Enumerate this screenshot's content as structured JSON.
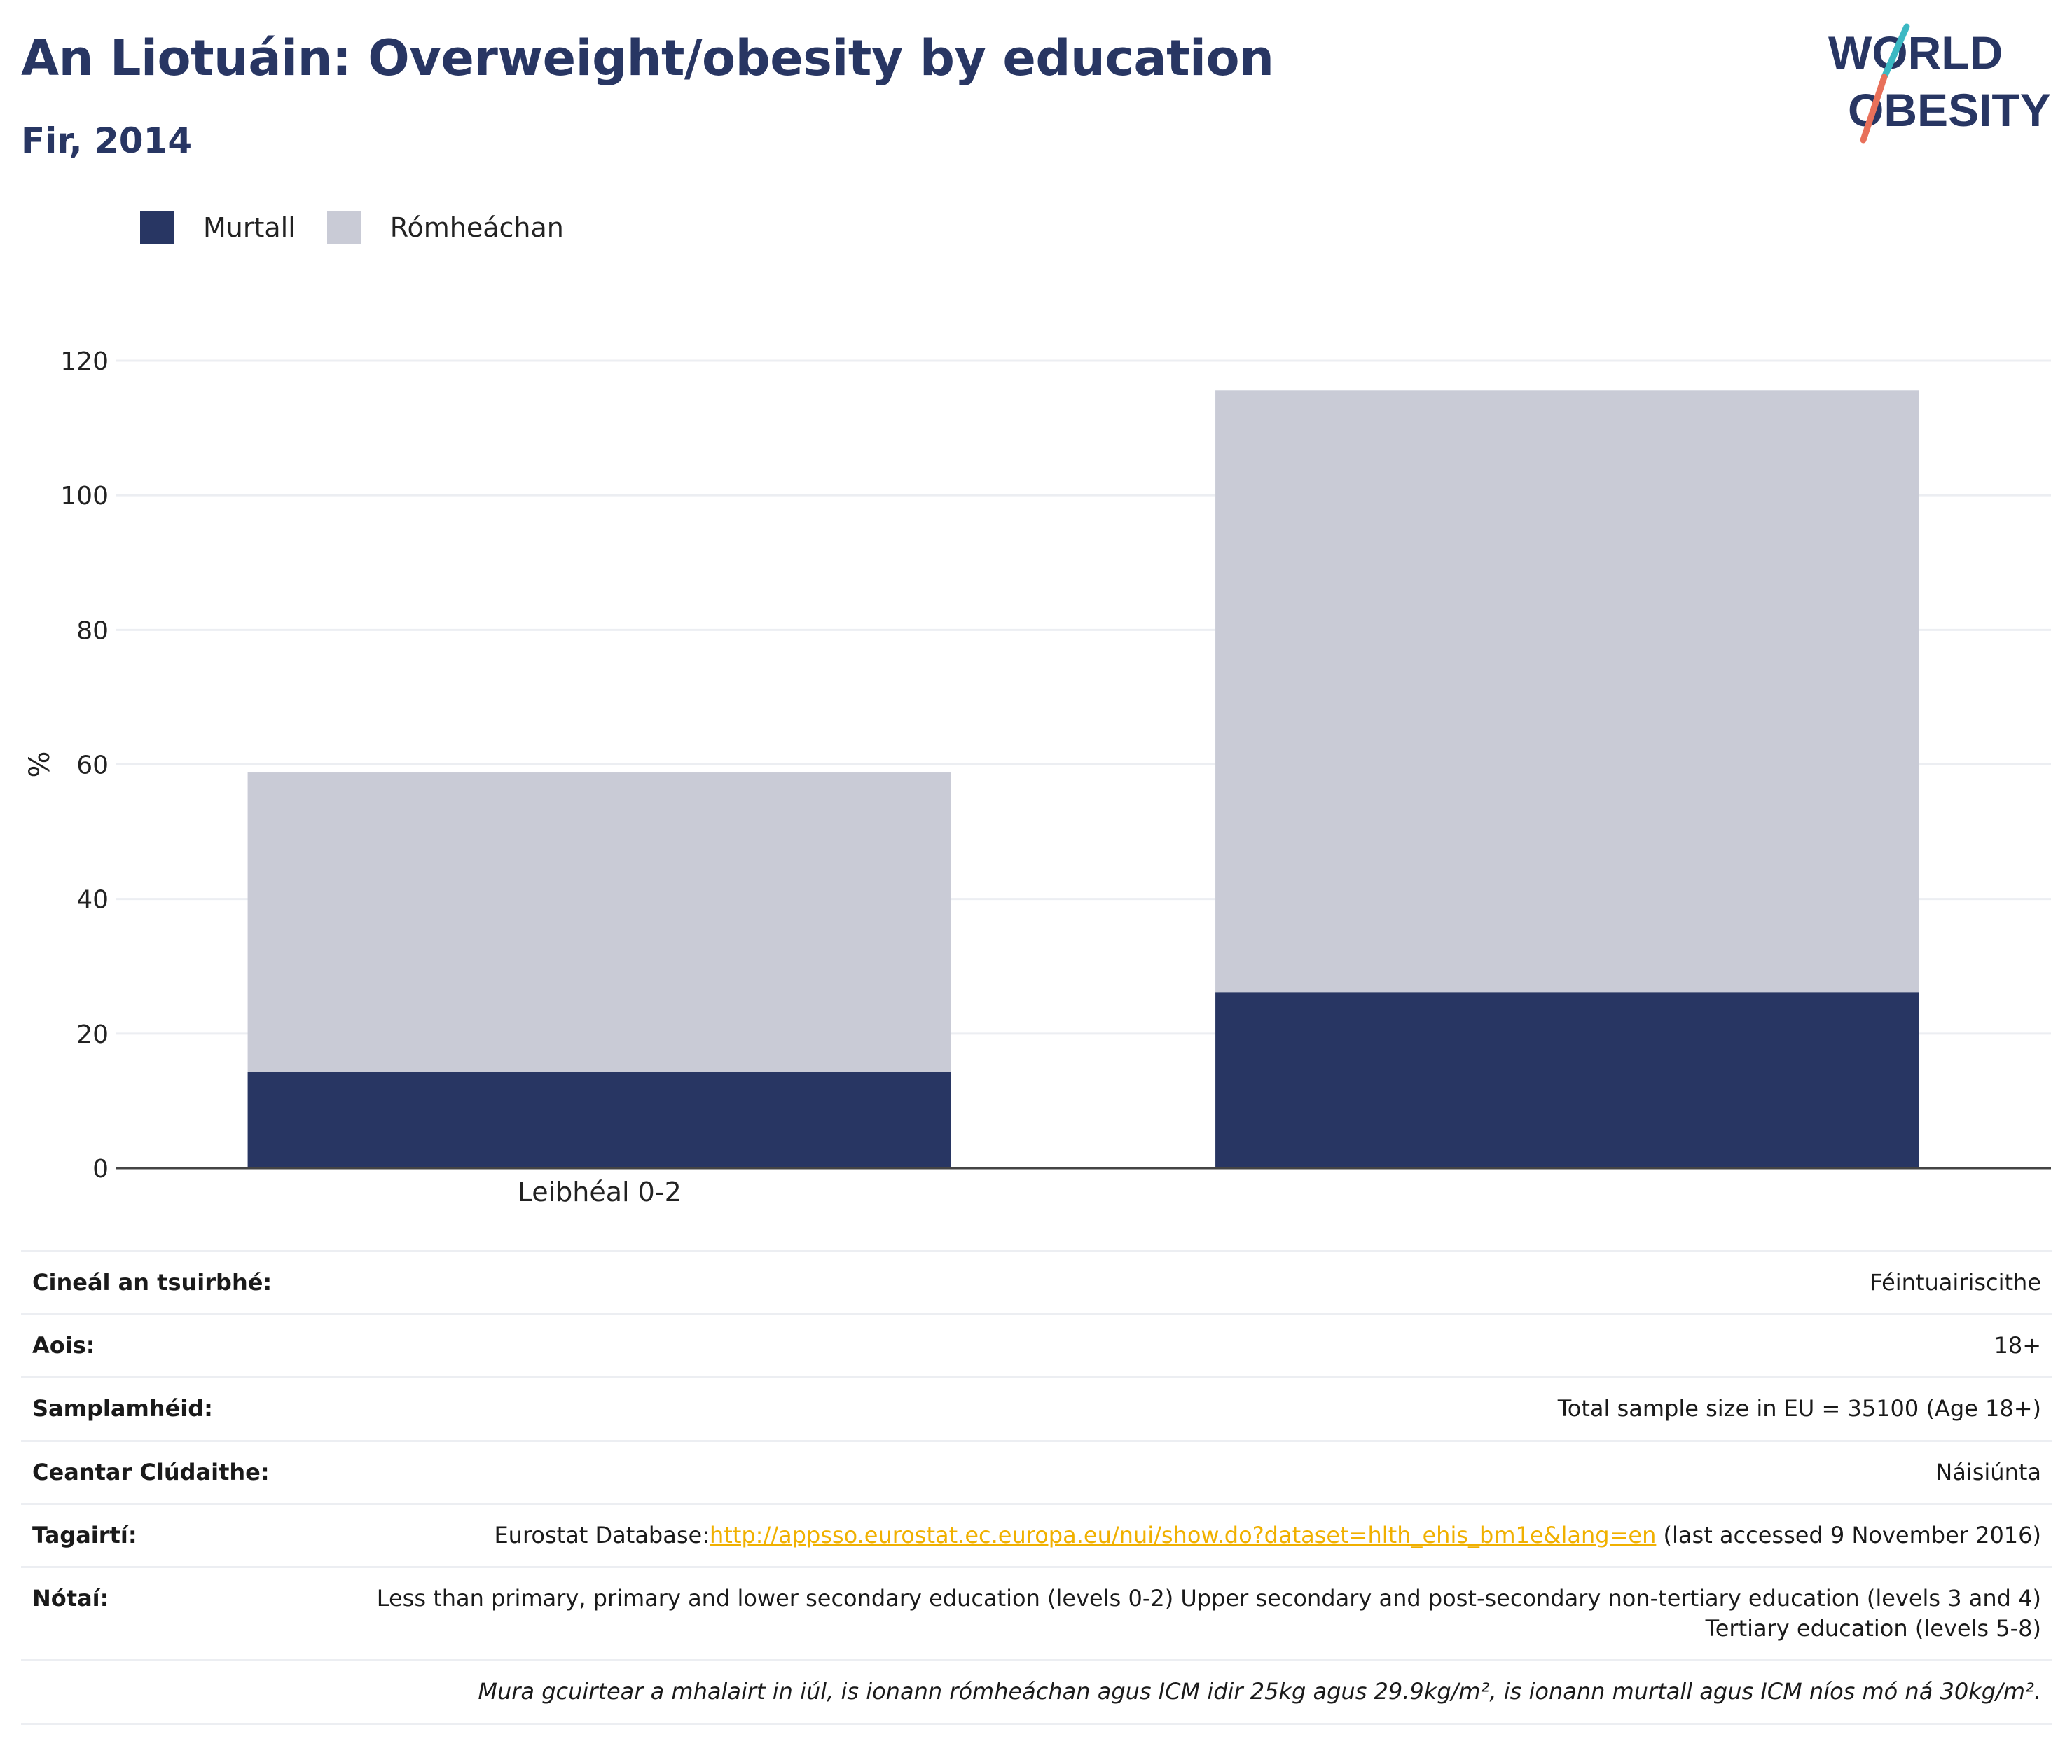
{
  "title": "An Liotuáin: Overweight/obesity by education",
  "subtitle": "Fir, 2014",
  "logo": {
    "line1": "WORLD",
    "line2": "OBESITY"
  },
  "legend": [
    {
      "label": "Murtall",
      "color": "#283663"
    },
    {
      "label": "Rómheáchan",
      "color": "#c9cbd6"
    }
  ],
  "chart_data": {
    "type": "bar",
    "stacked": true,
    "categories": [
      "Leibhéal 0-2",
      ""
    ],
    "series": [
      {
        "name": "Murtall",
        "color": "#283663",
        "values": [
          14.3,
          26.1
        ]
      },
      {
        "name": "Rómheáchan",
        "color": "#c9cbd6",
        "values": [
          44.5,
          89.5
        ]
      }
    ],
    "ylabel": "%",
    "xlabel": "",
    "ylim": [
      0,
      120
    ],
    "yticks": [
      0,
      20,
      40,
      60,
      80,
      100,
      120
    ],
    "grid": true,
    "legend_position": "top-left"
  },
  "meta": {
    "survey_type_label": "Cineál an tsuirbhé:",
    "survey_type_value": "Féintuairiscithe",
    "age_label": "Aois:",
    "age_value": "18+",
    "sample_label": "Samplamhéid:",
    "sample_value": "Total sample size in EU = 35100 (Age 18+)",
    "area_label": "Ceantar Clúdaithe:",
    "area_value": "Náisiúnta",
    "refs_label": "Tagairtí:",
    "refs_prefix": "Eurostat Database:",
    "refs_link": "http://appsso.eurostat.ec.europa.eu/nui/show.do?dataset=hlth_ehis_bm1e&lang=en",
    "refs_suffix": " (last accessed 9 November 2016)",
    "notes_label": "Nótaí:",
    "notes_value": "Less than primary, primary and lower secondary education (levels 0-2) Upper secondary and post-secondary non-tertiary education (levels 3 and 4) Tertiary education (levels 5-8)",
    "footnote": "Mura gcuirtear a mhalairt in iúl, is ionann rómheáchan agus ICM idir 25kg agus 29.9kg/m², is ionann murtall agus ICM níos mó ná 30kg/m²."
  }
}
